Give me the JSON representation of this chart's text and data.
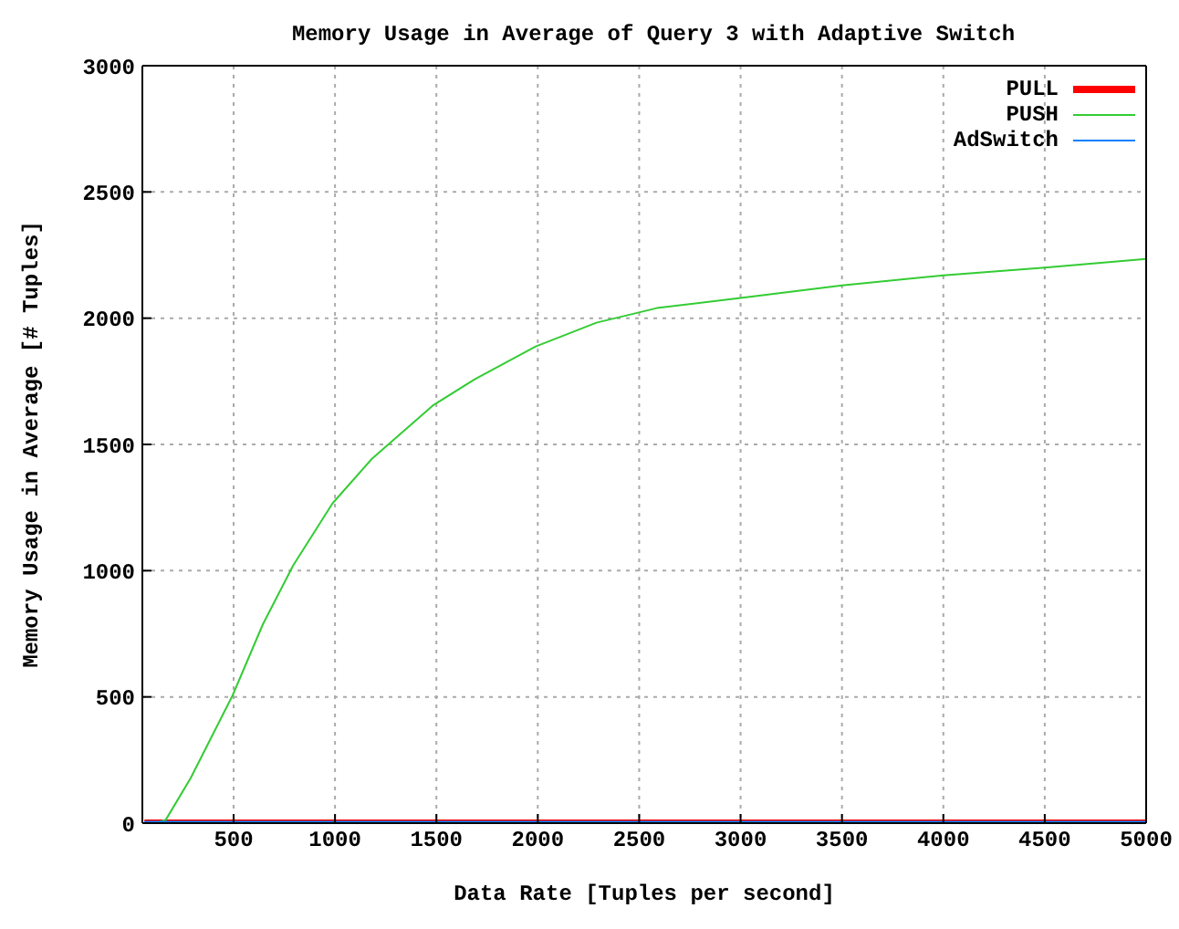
{
  "chart_data": {
    "type": "line",
    "title": "Memory Usage in Average of Query 3 with Adaptive Switch",
    "xlabel": "Data Rate [Tuples per second]",
    "ylabel": "Memory Usage in Average [# Tuples]",
    "xlim": [
      50,
      5000
    ],
    "xticks": [
      500,
      1000,
      1500,
      2000,
      2500,
      3000,
      3500,
      4000,
      4500,
      5000
    ],
    "ylim": [
      0,
      3000
    ],
    "yticks": [
      0,
      500,
      1000,
      1500,
      2000,
      2500,
      3000
    ],
    "grid": true,
    "legend": "top right",
    "marker": "none",
    "line_style": "solid",
    "series": [
      {
        "name": "PULL",
        "color": "#ff0000",
        "x": [
          60,
          5000
        ],
        "values": [
          0,
          0
        ]
      },
      {
        "name": "PUSH",
        "color": "#33cc33",
        "x": [
          60,
          120,
          166,
          288,
          495,
          644,
          794,
          988,
          1182,
          1482,
          1691,
          1990,
          2289,
          2587,
          3000,
          3500,
          4000,
          4500,
          5000
        ],
        "values": [
          0,
          0,
          14,
          178,
          506,
          787,
          1021,
          1267,
          1443,
          1654,
          1759,
          1888,
          1982,
          2040,
          2080,
          2130,
          2170,
          2200,
          2235
        ]
      },
      {
        "name": "AdSwitch",
        "color": "#0080ff",
        "x": [
          60,
          5000
        ],
        "values": [
          5,
          5
        ]
      }
    ]
  }
}
